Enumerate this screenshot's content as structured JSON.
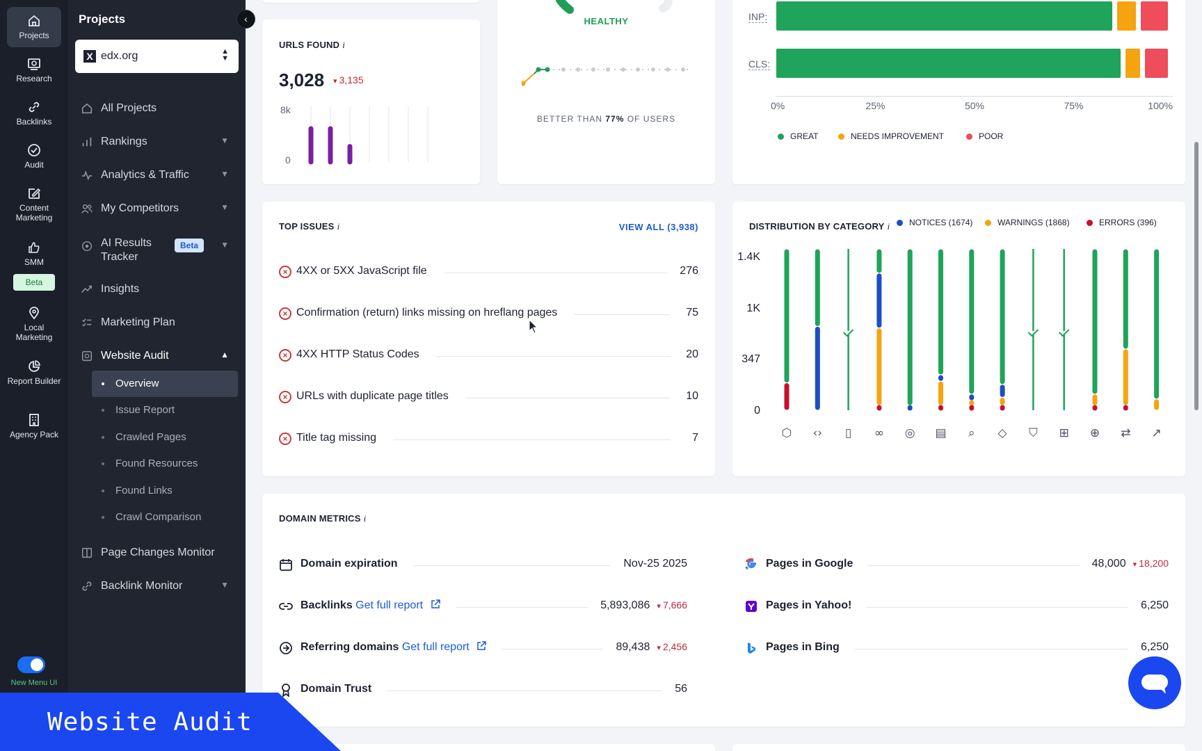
{
  "rail": [
    {
      "label": "Projects",
      "icon": "home-icon"
    },
    {
      "label": "Research",
      "icon": "research-icon"
    },
    {
      "label": "Backlinks",
      "icon": "link-icon"
    },
    {
      "label": "Audit",
      "icon": "check-circle-icon"
    },
    {
      "label": "Content Marketing",
      "icon": "edit-icon"
    },
    {
      "label": "SMM",
      "icon": "thumbs-up-icon"
    },
    {
      "label": "Local Marketing",
      "icon": "location-pin-icon"
    },
    {
      "label": "Report Builder",
      "icon": "pie-chart-icon"
    },
    {
      "label": "Agency Pack",
      "icon": "building-icon"
    }
  ],
  "rail_beta": "Beta",
  "toggle_label": "New Menu UI",
  "sidebar": {
    "title": "Projects",
    "project": "edx.org",
    "project_logo": "X",
    "nav": [
      {
        "label": "All Projects"
      },
      {
        "label": "Rankings"
      },
      {
        "label": "Analytics & Traffic"
      },
      {
        "label": "My Competitors"
      },
      {
        "label": "AI Results Tracker",
        "badge": "Beta"
      },
      {
        "label": "Insights"
      },
      {
        "label": "Marketing Plan"
      },
      {
        "label": "Website Audit"
      },
      {
        "label": "Page Changes Monitor"
      },
      {
        "label": "Backlink Monitor"
      }
    ],
    "audit_sub": [
      "Overview",
      "Issue Report",
      "Crawled Pages",
      "Found Resources",
      "Found Links",
      "Crawl Comparison"
    ]
  },
  "banner": "Website Audit",
  "urls_found": {
    "title": "URLS FOUND",
    "value": "3,028",
    "delta": "3,135",
    "y_top": "8k",
    "y_bottom": "0",
    "bars": [
      0.6,
      0.6,
      0.28,
      0,
      0,
      0,
      0
    ]
  },
  "health": {
    "status": "HEALTHY",
    "better_prefix": "BETTER THAN ",
    "better_pct": "77%",
    "better_suffix": " OF USERS"
  },
  "cwv": {
    "rows": [
      {
        "label": "INP:",
        "great": 86,
        "needs": 6,
        "poor": 8
      },
      {
        "label": "CLS:",
        "great": 88,
        "needs": 5,
        "poor": 7
      }
    ],
    "axis": [
      "0%",
      "25%",
      "50%",
      "75%",
      "100%"
    ],
    "legend": [
      "GREAT",
      "NEEDS IMPROVEMENT",
      "POOR"
    ],
    "colors": {
      "great": "#20a35a",
      "needs": "#f5a410",
      "poor": "#ef4c5c"
    }
  },
  "top_issues": {
    "title": "TOP ISSUES",
    "view_all": "VIEW ALL (3,938)",
    "items": [
      {
        "name": "4XX or 5XX JavaScript file",
        "count": "276"
      },
      {
        "name": "Confirmation (return) links missing on hreflang pages",
        "count": "75"
      },
      {
        "name": "4XX HTTP Status Codes",
        "count": "20"
      },
      {
        "name": "URLs with duplicate page titles",
        "count": "10"
      },
      {
        "name": "Title tag missing",
        "count": "7"
      }
    ]
  },
  "distribution": {
    "title": "DISTRIBUTION BY CATEGORY",
    "legend": [
      "NOTICES (1674)",
      "WARNINGS (1868)",
      "ERRORS (396)"
    ],
    "y_ticks": [
      "1.4K",
      "1K",
      "347",
      "0"
    ],
    "columns": [
      {
        "icon": "code-box-icon",
        "green": 0.83,
        "blue": 0,
        "orange": 0,
        "red": 0.17,
        "check": false
      },
      {
        "icon": "code-icon",
        "green": 0.48,
        "blue": 0.52,
        "orange": 0,
        "red": 0,
        "check": false
      },
      {
        "icon": "mobile-icon",
        "green": 1,
        "blue": 0,
        "orange": 0,
        "red": 0,
        "check": true
      },
      {
        "icon": "link-icon",
        "green": 0.15,
        "blue": 0.34,
        "orange": 0.48,
        "red": 0.03,
        "check": false
      },
      {
        "icon": "target-icon",
        "green": 0.97,
        "blue": 0.03,
        "orange": 0,
        "red": 0,
        "check": false
      },
      {
        "icon": "document-icon",
        "green": 0.78,
        "blue": 0.04,
        "orange": 0.15,
        "red": 0.03,
        "check": false
      },
      {
        "icon": "search-icon",
        "green": 0.9,
        "blue": 0.04,
        "orange": 0.03,
        "red": 0.03,
        "check": false
      },
      {
        "icon": "tag-icon",
        "green": 0.84,
        "blue": 0.08,
        "orange": 0.05,
        "red": 0.03,
        "check": false
      },
      {
        "icon": "shield-icon",
        "green": 1,
        "blue": 0,
        "orange": 0,
        "red": 0,
        "check": true
      },
      {
        "icon": "grid-icon",
        "green": 1,
        "blue": 0,
        "orange": 0,
        "red": 0,
        "check": true
      },
      {
        "icon": "globe-icon",
        "green": 0.9,
        "blue": 0,
        "orange": 0.07,
        "red": 0.03,
        "check": false
      },
      {
        "icon": "repeat-icon",
        "green": 0.62,
        "blue": 0,
        "orange": 0.35,
        "red": 0.03,
        "check": false
      },
      {
        "icon": "trend-icon",
        "green": 0.93,
        "blue": 0,
        "orange": 0.07,
        "red": 0,
        "check": false
      }
    ],
    "colors": {
      "green": "#20a35a",
      "blue": "#1c4fc2",
      "orange": "#f5a410",
      "red": "#c8102e"
    }
  },
  "domain_metrics": {
    "title": "DOMAIN METRICS",
    "left": [
      {
        "name": "Domain expiration",
        "value": "Nov-25 2025",
        "icon": "calendar-icon"
      },
      {
        "name": "Backlinks",
        "link": "Get full report",
        "value": "5,893,086",
        "delta": "7,666",
        "icon": "link-icon"
      },
      {
        "name": "Referring domains",
        "link": "Get full report",
        "value": "89,438",
        "delta": "2,456",
        "icon": "arrow-circle-icon"
      },
      {
        "name": "Domain Trust",
        "value": "56",
        "icon": "award-icon"
      }
    ],
    "right": [
      {
        "name": "Pages in Google",
        "value": "48,000",
        "delta": "18,200",
        "icon": "google-icon"
      },
      {
        "name": "Pages in Yahoo!",
        "value": "6,250",
        "icon": "yahoo-icon"
      },
      {
        "name": "Pages in Bing",
        "value": "6,250",
        "icon": "bing-icon"
      }
    ]
  }
}
